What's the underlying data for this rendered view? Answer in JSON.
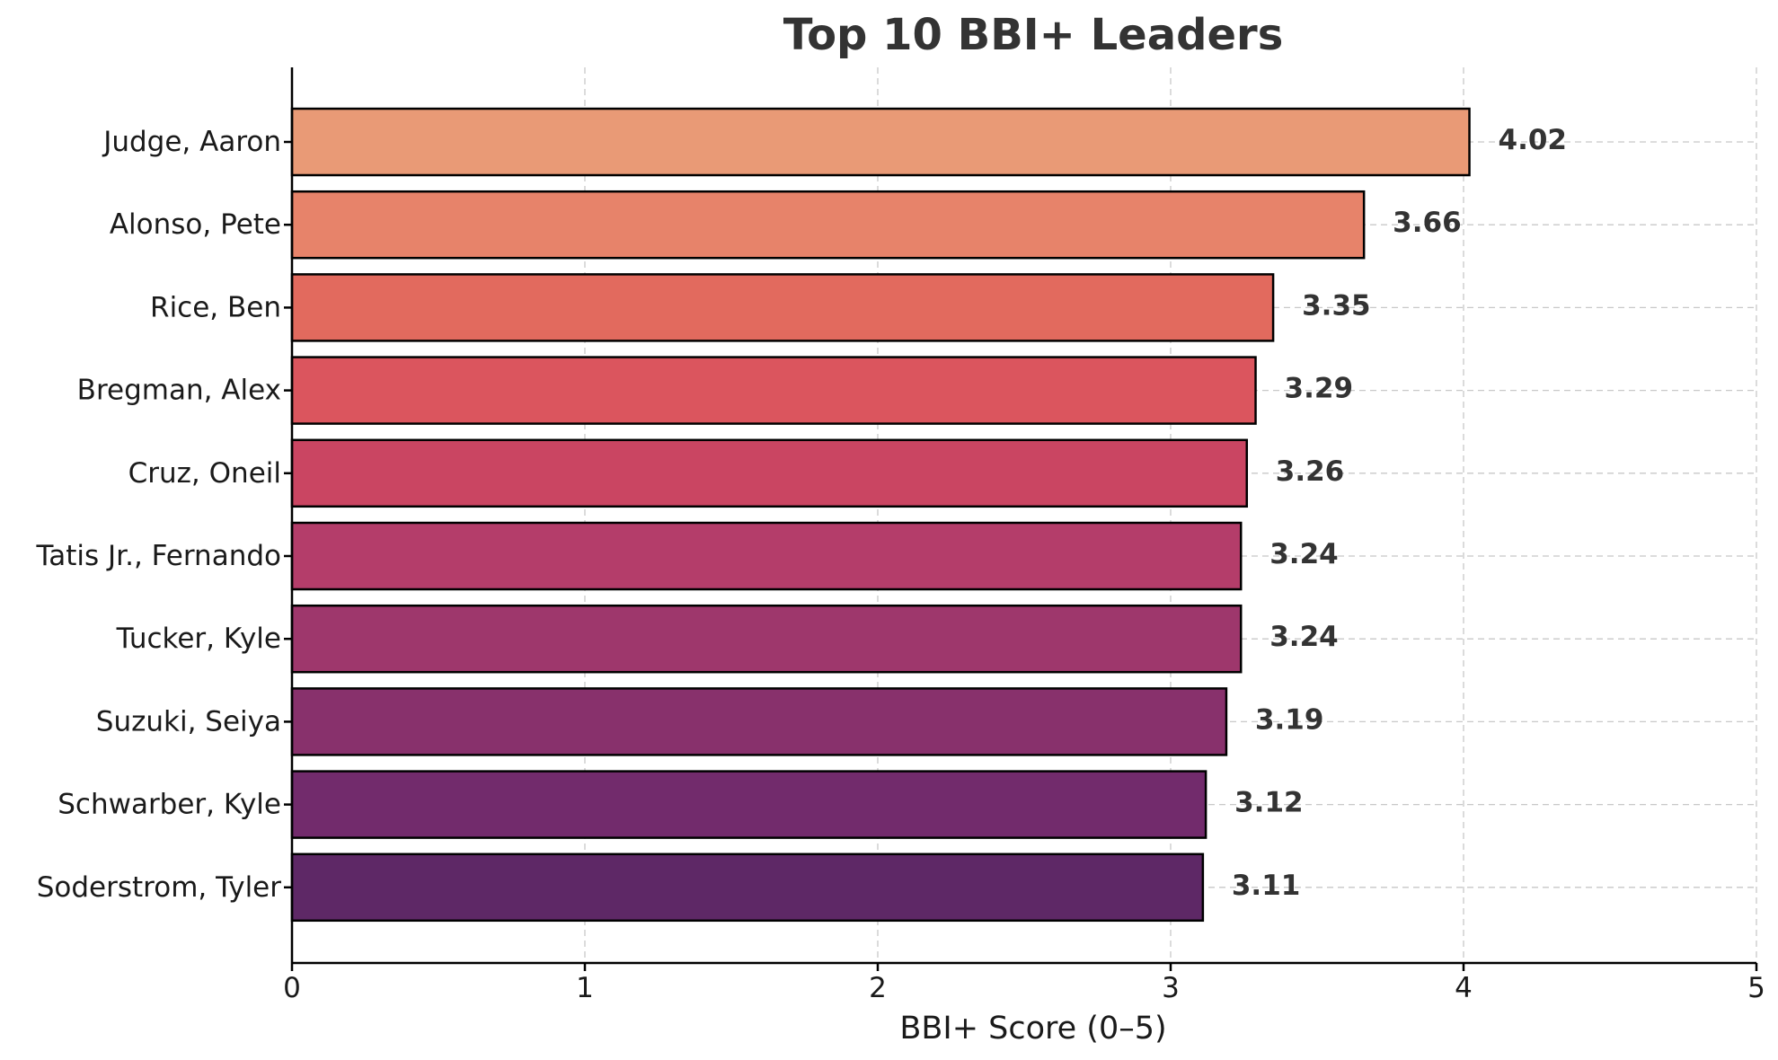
{
  "chart_data": {
    "type": "bar",
    "orientation": "horizontal",
    "title": "Top 10 BBI+ Leaders",
    "xlabel": "BBI+ Score (0–5)",
    "ylabel": "",
    "xlim": [
      0,
      5
    ],
    "xticks": [
      "0",
      "1",
      "2",
      "3",
      "4",
      "5"
    ],
    "grid": true,
    "categories": [
      "Judge, Aaron",
      "Alonso, Pete",
      "Rice, Ben",
      "Bregman, Alex",
      "Cruz, Oneil",
      "Tatis Jr., Fernando",
      "Tucker, Kyle",
      "Suzuki, Seiya",
      "Schwarber, Kyle",
      "Soderstrom, Tyler"
    ],
    "values": [
      4.02,
      3.66,
      3.35,
      3.29,
      3.26,
      3.24,
      3.24,
      3.19,
      3.12,
      3.11
    ],
    "value_labels": [
      "4.02",
      "3.66",
      "3.35",
      "3.29",
      "3.26",
      "3.24",
      "3.24",
      "3.19",
      "3.12",
      "3.11"
    ],
    "colors": [
      "#E99A76",
      "#E7836A",
      "#E26A5E",
      "#DB555E",
      "#CA4562",
      "#B43D6A",
      "#9E376C",
      "#88316C",
      "#722B6C",
      "#5E2866"
    ]
  }
}
